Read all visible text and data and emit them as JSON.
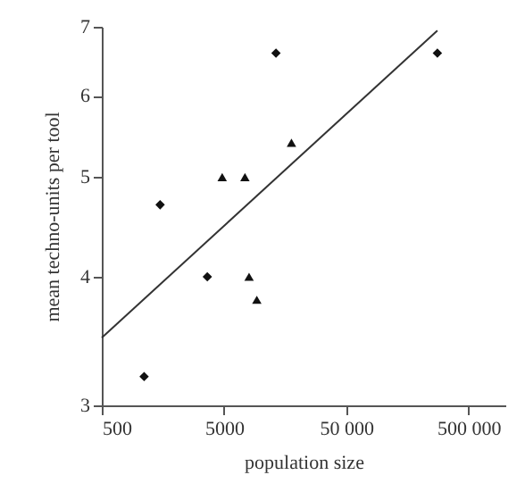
{
  "chart_data": {
    "type": "scatter",
    "xlabel": "population size",
    "ylabel": "mean techno-units per tool",
    "log": "xy",
    "xlim": [
      500,
      1000000
    ],
    "ylim": [
      3,
      7
    ],
    "xticks": [
      500,
      5000,
      {
        "value": 50000,
        "label": "50 000"
      },
      {
        "value": 500000,
        "label": "500 000"
      }
    ],
    "yticks": [
      3,
      4,
      5,
      6,
      7
    ],
    "grid": false,
    "series": [
      {
        "marker": "diamond",
        "color": "#111111",
        "x": [
          1110,
          1500,
          3650,
          13300,
          278000
        ],
        "values": [
          3.2,
          4.7,
          4.0,
          6.6,
          6.6
        ]
      },
      {
        "marker": "triangle",
        "color": "#111111",
        "x": [
          4830,
          7410,
          8010,
          9270,
          17800
        ],
        "values": [
          5.0,
          5.0,
          4.0,
          3.8,
          5.4
        ]
      },
      {
        "type": "line",
        "color": "#333333",
        "x": [
          500,
          278000
        ],
        "values": [
          3.49,
          6.94
        ]
      }
    ]
  }
}
